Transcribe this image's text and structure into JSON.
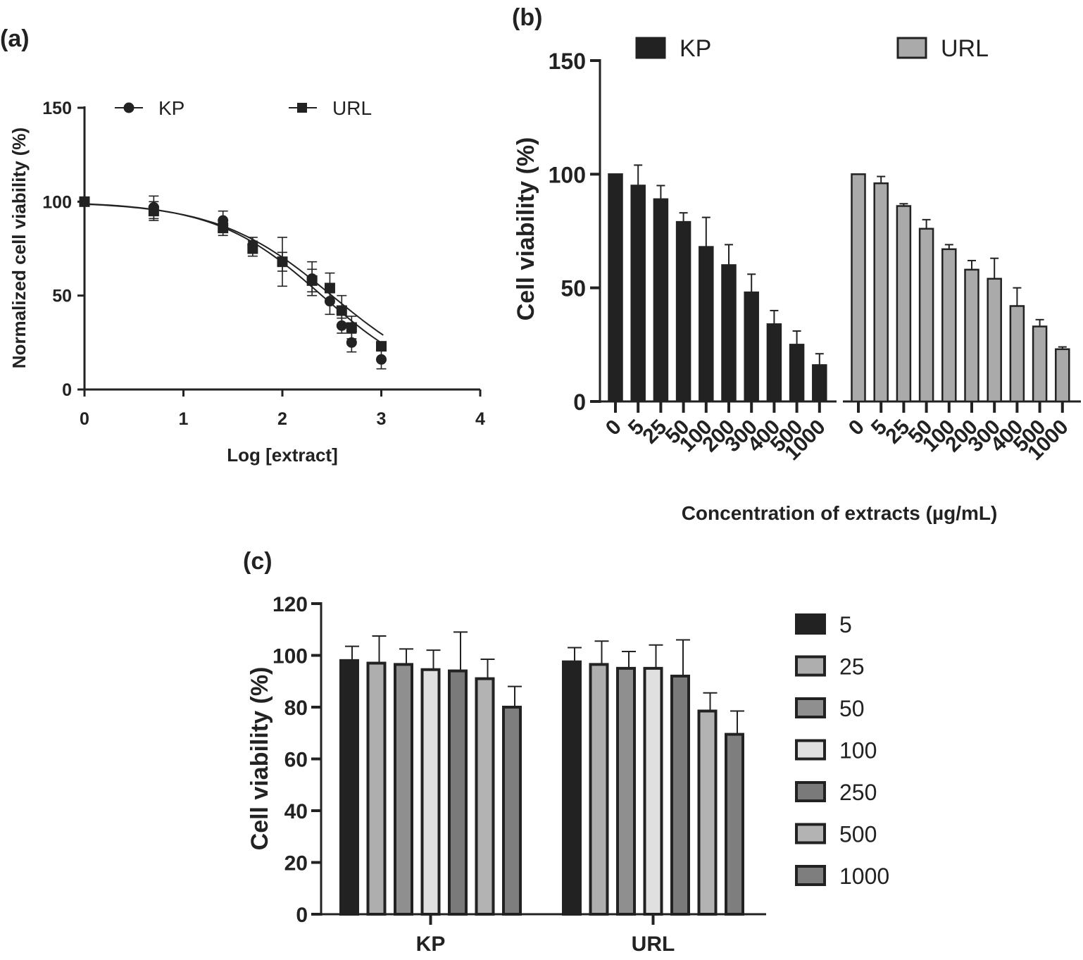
{
  "chart_data": [
    {
      "panel": "(a)",
      "type": "scatter",
      "xlabel": "Log [extract]",
      "ylabel": "Normalized cell viability (%)",
      "xlim": [
        0,
        4
      ],
      "ylim": [
        0,
        150
      ],
      "xticks": [
        "0",
        "1",
        "2",
        "3",
        "4"
      ],
      "yticks": [
        "0",
        "50",
        "100",
        "150"
      ],
      "legend_position": "top",
      "series": [
        {
          "name": "KP",
          "marker": "circle",
          "x": [
            0,
            0.7,
            1.4,
            1.7,
            2.0,
            2.3,
            2.48,
            2.6,
            2.7,
            3.0
          ],
          "y": [
            100,
            97,
            90,
            77,
            68,
            59,
            47,
            34,
            25,
            16
          ],
          "err": [
            0,
            6,
            5,
            4,
            13,
            9,
            7,
            4,
            5,
            5
          ],
          "fit": {
            "top": 100,
            "bottom": 0,
            "logIC50": 2.4,
            "hill": -0.8
          }
        },
        {
          "name": "URL",
          "marker": "square",
          "x": [
            0,
            0.7,
            1.4,
            1.7,
            2.0,
            2.3,
            2.48,
            2.6,
            2.7,
            3.0
          ],
          "y": [
            100,
            95,
            86,
            75,
            68,
            58,
            54,
            42,
            33,
            23
          ],
          "err": [
            0,
            5,
            4,
            4,
            5,
            6,
            8,
            8,
            6,
            2
          ],
          "fit": {
            "top": 100,
            "bottom": 0,
            "logIC50": 2.5,
            "hill": -0.75
          }
        }
      ]
    },
    {
      "panel": "(b)",
      "type": "bar",
      "xlabel": "Concentration of extracts (µg/mL)",
      "ylabel": "Cell viability (%)",
      "ylim": [
        0,
        150
      ],
      "yticks": [
        "0",
        "50",
        "100",
        "150"
      ],
      "categories": [
        "0",
        "5",
        "25",
        "50",
        "100",
        "200",
        "300",
        "400",
        "500",
        "1000"
      ],
      "legend_position": "top",
      "series": [
        {
          "name": "KP",
          "color": "#222222",
          "values": [
            100,
            95,
            89,
            79,
            68,
            60,
            48,
            34,
            25,
            16
          ],
          "err": [
            0,
            9,
            6,
            4,
            13,
            9,
            8,
            6,
            6,
            5
          ]
        },
        {
          "name": "URL",
          "color": "#aaaaaa",
          "values": [
            100,
            96,
            86,
            76,
            67,
            58,
            54,
            42,
            33,
            23
          ],
          "err": [
            0,
            3,
            1,
            4,
            2,
            4,
            9,
            8,
            3,
            1
          ]
        }
      ]
    },
    {
      "panel": "(c)",
      "type": "bar",
      "xlabel": "",
      "ylabel": "Cell viability (%)",
      "ylim": [
        0,
        120
      ],
      "yticks": [
        "0",
        "20",
        "40",
        "60",
        "80",
        "100",
        "120"
      ],
      "categories": [
        "KP",
        "URL"
      ],
      "legend_position": "right",
      "series": [
        {
          "name": "5",
          "color": "#222222",
          "values": [
            98,
            97.5
          ],
          "err": [
            5.5,
            5.5
          ]
        },
        {
          "name": "25",
          "color": "#aeaeae",
          "values": [
            97,
            96.5
          ],
          "err": [
            10.5,
            9
          ]
        },
        {
          "name": "50",
          "color": "#8f8f8f",
          "values": [
            96.5,
            95
          ],
          "err": [
            6,
            6.5
          ]
        },
        {
          "name": "100",
          "color": "#e0e0e0",
          "values": [
            94.5,
            95
          ],
          "err": [
            7.5,
            9
          ]
        },
        {
          "name": "250",
          "color": "#7a7a7a",
          "values": [
            94,
            92
          ],
          "err": [
            15,
            14
          ]
        },
        {
          "name": "500",
          "color": "#b3b3b3",
          "values": [
            91,
            78.5
          ],
          "err": [
            7.5,
            7
          ]
        },
        {
          "name": "1000",
          "color": "#7e7e7e",
          "values": [
            80,
            69.5
          ],
          "err": [
            8,
            9
          ]
        }
      ]
    }
  ]
}
